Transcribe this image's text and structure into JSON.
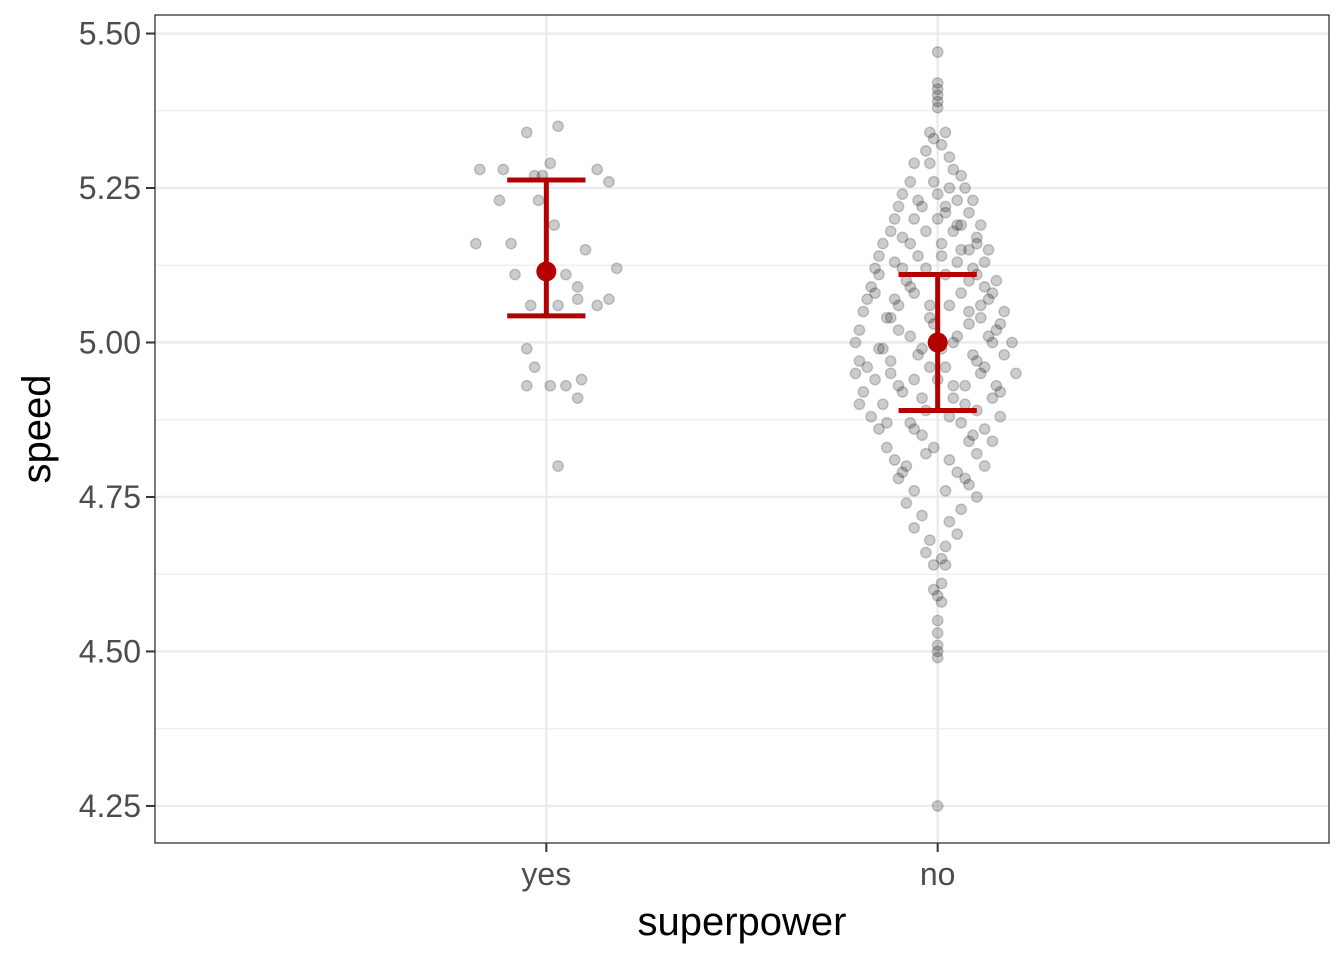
{
  "chart_data": {
    "type": "scatter",
    "xlabel": "superpower",
    "ylabel": "speed",
    "categories": [
      "yes",
      "no"
    ],
    "ylim": [
      4.19,
      5.53
    ],
    "y_ticks": [
      4.25,
      4.5,
      4.75,
      5.0,
      5.25,
      5.5
    ],
    "y_tick_labels": [
      "4.25",
      "4.50",
      "4.75",
      "5.00",
      "5.25",
      "5.50"
    ],
    "grid": true,
    "colors": {
      "points": "#000000",
      "summary": "#b30000",
      "grid": "#ebebeb",
      "border": "#333333"
    },
    "summary": [
      {
        "category": "yes",
        "mean": 5.115,
        "ci_low": 5.043,
        "ci_high": 5.263
      },
      {
        "category": "no",
        "mean": 5.0,
        "ci_low": 4.89,
        "ci_high": 5.11
      }
    ],
    "points": {
      "yes": [
        [
          -0.18,
          5.16
        ],
        [
          -0.17,
          5.28
        ],
        [
          -0.12,
          5.23
        ],
        [
          -0.11,
          5.28
        ],
        [
          -0.09,
          5.16
        ],
        [
          -0.08,
          5.11
        ],
        [
          -0.05,
          4.99
        ],
        [
          -0.05,
          4.93
        ],
        [
          -0.05,
          5.34
        ],
        [
          -0.04,
          5.06
        ],
        [
          -0.03,
          4.96
        ],
        [
          -0.02,
          5.23
        ],
        [
          -0.03,
          5.27
        ],
        [
          -0.01,
          5.27
        ],
        [
          0.01,
          5.29
        ],
        [
          0.01,
          4.93
        ],
        [
          0.02,
          5.19
        ],
        [
          0.03,
          5.35
        ],
        [
          0.03,
          4.8
        ],
        [
          0.03,
          5.06
        ],
        [
          0.05,
          5.11
        ],
        [
          0.05,
          4.93
        ],
        [
          0.08,
          4.91
        ],
        [
          0.08,
          5.07
        ],
        [
          0.08,
          5.09
        ],
        [
          0.09,
          4.94
        ],
        [
          0.1,
          5.15
        ],
        [
          0.13,
          5.06
        ],
        [
          0.13,
          5.28
        ],
        [
          0.16,
          5.07
        ],
        [
          0.16,
          5.26
        ],
        [
          0.18,
          5.12
        ]
      ],
      "no": [
        [
          0.0,
          5.47
        ],
        [
          0.0,
          5.42
        ],
        [
          0.0,
          5.41
        ],
        [
          0.0,
          5.4
        ],
        [
          0.0,
          5.39
        ],
        [
          0.0,
          5.38
        ],
        [
          -0.02,
          5.34
        ],
        [
          0.02,
          5.34
        ],
        [
          -0.01,
          5.33
        ],
        [
          0.01,
          5.32
        ],
        [
          -0.03,
          5.31
        ],
        [
          0.03,
          5.3
        ],
        [
          -0.06,
          5.29
        ],
        [
          -0.02,
          5.29
        ],
        [
          0.04,
          5.28
        ],
        [
          0.06,
          5.27
        ],
        [
          -0.07,
          5.26
        ],
        [
          -0.01,
          5.26
        ],
        [
          0.03,
          5.25
        ],
        [
          0.07,
          5.25
        ],
        [
          -0.09,
          5.24
        ],
        [
          0.0,
          5.24
        ],
        [
          0.05,
          5.23
        ],
        [
          0.09,
          5.23
        ],
        [
          -0.1,
          5.22
        ],
        [
          -0.04,
          5.22
        ],
        [
          0.02,
          5.22
        ],
        [
          0.08,
          5.21
        ],
        [
          -0.11,
          5.2
        ],
        [
          -0.06,
          5.2
        ],
        [
          0.0,
          5.2
        ],
        [
          0.06,
          5.19
        ],
        [
          0.11,
          5.19
        ],
        [
          -0.12,
          5.18
        ],
        [
          -0.03,
          5.18
        ],
        [
          0.04,
          5.18
        ],
        [
          0.1,
          5.17
        ],
        [
          -0.14,
          5.16
        ],
        [
          -0.07,
          5.16
        ],
        [
          0.01,
          5.16
        ],
        [
          0.08,
          5.15
        ],
        [
          0.13,
          5.15
        ],
        [
          -0.15,
          5.14
        ],
        [
          -0.05,
          5.14
        ],
        [
          0.05,
          5.13
        ],
        [
          0.12,
          5.13
        ],
        [
          -0.16,
          5.12
        ],
        [
          -0.09,
          5.12
        ],
        [
          0.02,
          5.11
        ],
        [
          0.1,
          5.11
        ],
        [
          0.15,
          5.1
        ],
        [
          -0.17,
          5.09
        ],
        [
          -0.07,
          5.09
        ],
        [
          0.06,
          5.08
        ],
        [
          0.14,
          5.08
        ],
        [
          -0.18,
          5.07
        ],
        [
          -0.11,
          5.07
        ],
        [
          0.03,
          5.06
        ],
        [
          0.11,
          5.06
        ],
        [
          0.17,
          5.05
        ],
        [
          -0.19,
          5.05
        ],
        [
          -0.13,
          5.04
        ],
        [
          -0.02,
          5.04
        ],
        [
          0.08,
          5.03
        ],
        [
          0.16,
          5.03
        ],
        [
          -0.2,
          5.02
        ],
        [
          -0.1,
          5.02
        ],
        [
          0.05,
          5.01
        ],
        [
          0.13,
          5.01
        ],
        [
          0.19,
          5.0
        ],
        [
          -0.21,
          5.0
        ],
        [
          -0.15,
          4.99
        ],
        [
          -0.04,
          4.99
        ],
        [
          0.09,
          4.98
        ],
        [
          0.17,
          4.98
        ],
        [
          -0.2,
          4.97
        ],
        [
          -0.12,
          4.97
        ],
        [
          0.02,
          4.96
        ],
        [
          0.12,
          4.96
        ],
        [
          0.2,
          4.95
        ],
        [
          -0.21,
          4.95
        ],
        [
          -0.16,
          4.94
        ],
        [
          -0.06,
          4.94
        ],
        [
          0.07,
          4.93
        ],
        [
          0.15,
          4.93
        ],
        [
          -0.19,
          4.92
        ],
        [
          -0.09,
          4.92
        ],
        [
          0.04,
          4.91
        ],
        [
          0.14,
          4.91
        ],
        [
          -0.2,
          4.9
        ],
        [
          -0.14,
          4.9
        ],
        [
          -0.03,
          4.89
        ],
        [
          0.1,
          4.89
        ],
        [
          0.16,
          4.88
        ],
        [
          -0.17,
          4.88
        ],
        [
          -0.07,
          4.87
        ],
        [
          0.06,
          4.87
        ],
        [
          0.12,
          4.86
        ],
        [
          -0.15,
          4.86
        ],
        [
          -0.04,
          4.85
        ],
        [
          0.08,
          4.84
        ],
        [
          0.14,
          4.84
        ],
        [
          -0.13,
          4.83
        ],
        [
          -0.01,
          4.83
        ],
        [
          0.1,
          4.82
        ],
        [
          -0.11,
          4.81
        ],
        [
          0.03,
          4.81
        ],
        [
          0.12,
          4.8
        ],
        [
          -0.09,
          4.79
        ],
        [
          0.05,
          4.79
        ],
        [
          -0.1,
          4.78
        ],
        [
          0.08,
          4.77
        ],
        [
          -0.06,
          4.76
        ],
        [
          0.02,
          4.76
        ],
        [
          0.1,
          4.75
        ],
        [
          -0.08,
          4.74
        ],
        [
          0.06,
          4.73
        ],
        [
          -0.04,
          4.72
        ],
        [
          0.03,
          4.71
        ],
        [
          -0.06,
          4.7
        ],
        [
          0.05,
          4.69
        ],
        [
          -0.02,
          4.68
        ],
        [
          0.02,
          4.67
        ],
        [
          -0.03,
          4.66
        ],
        [
          0.01,
          4.65
        ],
        [
          -0.01,
          4.64
        ],
        [
          0.02,
          4.64
        ],
        [
          0.01,
          4.61
        ],
        [
          -0.01,
          4.6
        ],
        [
          0.0,
          4.59
        ],
        [
          0.01,
          4.58
        ],
        [
          0.0,
          4.55
        ],
        [
          0.0,
          4.53
        ],
        [
          0.0,
          4.51
        ],
        [
          0.0,
          4.5
        ],
        [
          0.0,
          4.49
        ],
        [
          0.0,
          4.25
        ],
        [
          -0.08,
          5.1
        ],
        [
          0.04,
          5.0
        ],
        [
          -0.12,
          5.04
        ],
        [
          0.09,
          5.12
        ],
        [
          -0.05,
          4.98
        ],
        [
          0.11,
          4.95
        ],
        [
          -0.16,
          5.08
        ],
        [
          0.07,
          4.9
        ],
        [
          -0.02,
          5.06
        ],
        [
          0.15,
          5.02
        ],
        [
          -0.1,
          4.93
        ],
        [
          0.01,
          5.14
        ],
        [
          -0.06,
          4.86
        ],
        [
          0.13,
          5.07
        ],
        [
          -0.14,
          4.99
        ],
        [
          0.03,
          4.88
        ],
        [
          -0.09,
          5.17
        ],
        [
          0.1,
          4.97
        ],
        [
          -0.01,
          5.03
        ],
        [
          0.06,
          5.15
        ],
        [
          -0.18,
          4.96
        ],
        [
          0.16,
          4.92
        ],
        [
          -0.04,
          4.91
        ],
        [
          0.08,
          5.05
        ],
        [
          -0.11,
          5.13
        ],
        [
          0.0,
          4.94
        ],
        [
          -0.07,
          5.01
        ],
        [
          0.12,
          5.09
        ],
        [
          -0.13,
          4.87
        ],
        [
          0.05,
          5.19
        ],
        [
          -0.03,
          4.82
        ],
        [
          0.09,
          4.85
        ],
        [
          -0.08,
          4.8
        ],
        [
          0.02,
          5.21
        ],
        [
          -0.05,
          5.23
        ],
        [
          0.07,
          4.78
        ],
        [
          -0.15,
          5.11
        ],
        [
          0.14,
          5.0
        ],
        [
          -0.02,
          4.96
        ],
        [
          0.11,
          5.04
        ],
        [
          -0.1,
          5.06
        ],
        [
          0.04,
          4.93
        ],
        [
          -0.06,
          5.08
        ],
        [
          0.01,
          4.99
        ],
        [
          -0.12,
          4.95
        ],
        [
          0.08,
          5.1
        ],
        [
          -0.03,
          5.12
        ],
        [
          0.1,
          5.16
        ]
      ]
    }
  }
}
